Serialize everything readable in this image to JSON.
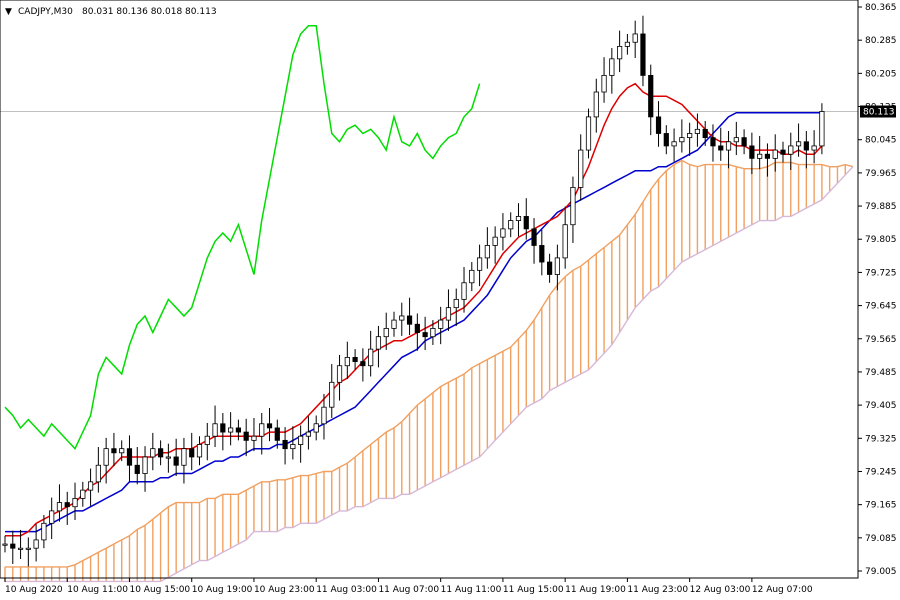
{
  "header": {
    "arrow": "▼",
    "symbol": "CADJPY,M30",
    "ohlc": "80.031 80.136 80.018 80.113"
  },
  "price_marker": "80.113",
  "colors": {
    "background": "#ffffff",
    "candle_bull": "#ffffff",
    "candle_bear": "#000000",
    "tenkan": "#dd0000",
    "kijun": "#0000cc",
    "chikou": "#00dd00",
    "span_a": "#f0a060",
    "span_b": "#d8b8d8",
    "current_line": "#c0c0c0"
  },
  "chart_data": {
    "type": "candlestick",
    "indicator": "Ichimoku Kinko Hyo",
    "ylim": [
      79.05,
      80.365
    ],
    "y_ticks": [
      "80.365",
      "80.285",
      "80.205",
      "80.125",
      "80.045",
      "79.965",
      "79.885",
      "79.805",
      "79.725",
      "79.645",
      "79.565",
      "79.485",
      "79.405",
      "79.325",
      "79.245",
      "79.165",
      "79.085",
      "79.005"
    ],
    "x_ticks": [
      {
        "i": 0,
        "label": "10 Aug 2020"
      },
      {
        "i": 8,
        "label": "10 Aug 11:00"
      },
      {
        "i": 16,
        "label": "10 Aug 15:00"
      },
      {
        "i": 24,
        "label": "10 Aug 19:00"
      },
      {
        "i": 32,
        "label": "10 Aug 23:00"
      },
      {
        "i": 40,
        "label": "11 Aug 03:00"
      },
      {
        "i": 48,
        "label": "11 Aug 07:00"
      },
      {
        "i": 56,
        "label": "11 Aug 11:00"
      },
      {
        "i": 64,
        "label": "11 Aug 15:00"
      },
      {
        "i": 72,
        "label": "11 Aug 19:00"
      },
      {
        "i": 80,
        "label": "11 Aug 23:00"
      },
      {
        "i": 88,
        "label": "12 Aug 03:00"
      },
      {
        "i": 96,
        "label": "12 Aug 07:00"
      }
    ],
    "current_price": 80.113,
    "close": [
      79.07,
      79.06,
      79.06,
      79.06,
      79.08,
      79.12,
      79.15,
      79.17,
      79.16,
      79.18,
      79.2,
      79.22,
      79.26,
      79.3,
      79.29,
      79.3,
      79.26,
      79.24,
      79.28,
      79.3,
      79.28,
      79.28,
      79.26,
      79.3,
      79.28,
      79.31,
      79.33,
      79.36,
      79.34,
      79.35,
      79.34,
      79.32,
      79.33,
      79.36,
      79.35,
      79.32,
      79.3,
      79.31,
      79.33,
      79.34,
      79.36,
      79.4,
      79.46,
      79.5,
      79.52,
      79.51,
      79.5,
      79.54,
      79.57,
      79.59,
      79.61,
      79.62,
      79.6,
      79.58,
      79.57,
      79.59,
      79.61,
      79.64,
      79.66,
      79.7,
      79.73,
      79.76,
      79.79,
      79.81,
      79.83,
      79.85,
      79.86,
      79.83,
      79.79,
      79.75,
      79.72,
      79.76,
      79.84,
      79.93,
      80.02,
      80.1,
      80.16,
      80.2,
      80.24,
      80.27,
      80.28,
      80.3,
      80.2,
      80.1,
      80.06,
      80.03,
      80.04,
      80.05,
      80.06,
      80.07,
      80.05,
      80.03,
      80.02,
      80.04,
      80.05,
      80.03,
      80.0,
      80.01,
      80.0,
      80.02,
      80.01,
      80.03,
      80.04,
      80.02,
      80.03,
      80.113
    ],
    "tenkan": [
      79.09,
      79.09,
      79.09,
      79.1,
      79.12,
      79.13,
      79.14,
      79.15,
      79.16,
      79.17,
      79.19,
      79.21,
      79.22,
      79.24,
      79.26,
      79.28,
      79.28,
      79.28,
      79.28,
      79.28,
      79.29,
      79.29,
      79.3,
      79.3,
      79.3,
      79.31,
      79.32,
      79.33,
      79.33,
      79.33,
      79.33,
      79.33,
      79.33,
      79.33,
      79.34,
      79.34,
      79.34,
      79.35,
      79.36,
      79.38,
      79.4,
      79.42,
      79.44,
      79.46,
      79.47,
      79.49,
      79.51,
      79.53,
      79.54,
      79.55,
      79.56,
      79.56,
      79.57,
      79.58,
      79.59,
      79.6,
      79.61,
      79.62,
      79.63,
      79.64,
      79.66,
      79.68,
      79.71,
      79.74,
      79.77,
      79.79,
      79.81,
      79.82,
      79.83,
      79.84,
      79.85,
      79.86,
      79.88,
      79.9,
      79.94,
      79.98,
      80.03,
      80.08,
      80.12,
      80.15,
      80.17,
      80.18,
      80.16,
      80.15,
      80.15,
      80.15,
      80.14,
      80.13,
      80.11,
      80.09,
      80.07,
      80.05,
      80.04,
      80.04,
      80.03,
      80.03,
      80.02,
      80.02,
      80.02,
      80.02,
      80.01,
      80.01,
      80.02,
      80.01,
      80.01,
      80.03
    ],
    "kijun": [
      79.1,
      79.1,
      79.1,
      79.1,
      79.1,
      79.11,
      79.12,
      79.13,
      79.14,
      79.15,
      79.15,
      79.16,
      79.17,
      79.18,
      79.19,
      79.2,
      79.22,
      79.22,
      79.22,
      79.22,
      79.23,
      79.23,
      79.24,
      79.24,
      79.24,
      79.25,
      79.26,
      79.27,
      79.27,
      79.28,
      79.28,
      79.29,
      79.3,
      79.3,
      79.3,
      79.31,
      79.31,
      79.32,
      79.33,
      79.34,
      79.35,
      79.36,
      79.37,
      79.38,
      79.39,
      79.4,
      79.42,
      79.44,
      79.46,
      79.48,
      79.5,
      79.52,
      79.53,
      79.54,
      79.56,
      79.57,
      79.58,
      79.59,
      79.6,
      79.61,
      79.63,
      79.65,
      79.67,
      79.7,
      79.73,
      79.76,
      79.78,
      79.8,
      79.81,
      79.83,
      79.85,
      79.87,
      79.88,
      79.89,
      79.9,
      79.91,
      79.92,
      79.93,
      79.94,
      79.95,
      79.96,
      79.97,
      79.97,
      79.97,
      79.98,
      79.98,
      79.99,
      80.0,
      80.01,
      80.02,
      80.04,
      80.06,
      80.08,
      80.1,
      80.11,
      80.11,
      80.11,
      80.11,
      80.11,
      80.11,
      80.11,
      80.11,
      80.11,
      80.11,
      80.11,
      80.11
    ],
    "chikou": [
      79.4,
      79.38,
      79.35,
      79.37,
      79.35,
      79.33,
      79.36,
      79.34,
      79.32,
      79.3,
      79.34,
      79.38,
      79.48,
      79.52,
      79.5,
      79.48,
      79.55,
      79.6,
      79.62,
      79.58,
      79.62,
      79.66,
      79.64,
      79.62,
      79.64,
      79.7,
      79.76,
      79.8,
      79.82,
      79.8,
      79.84,
      79.78,
      79.72,
      79.85,
      79.95,
      80.05,
      80.15,
      80.25,
      80.3,
      80.32,
      80.32,
      80.18,
      80.06,
      80.04,
      80.07,
      80.08,
      80.06,
      80.07,
      80.05,
      80.02,
      80.1,
      80.04,
      80.03,
      80.06,
      80.02,
      80.0,
      80.03,
      80.05,
      80.06,
      80.1,
      80.12,
      80.18
    ]
  }
}
